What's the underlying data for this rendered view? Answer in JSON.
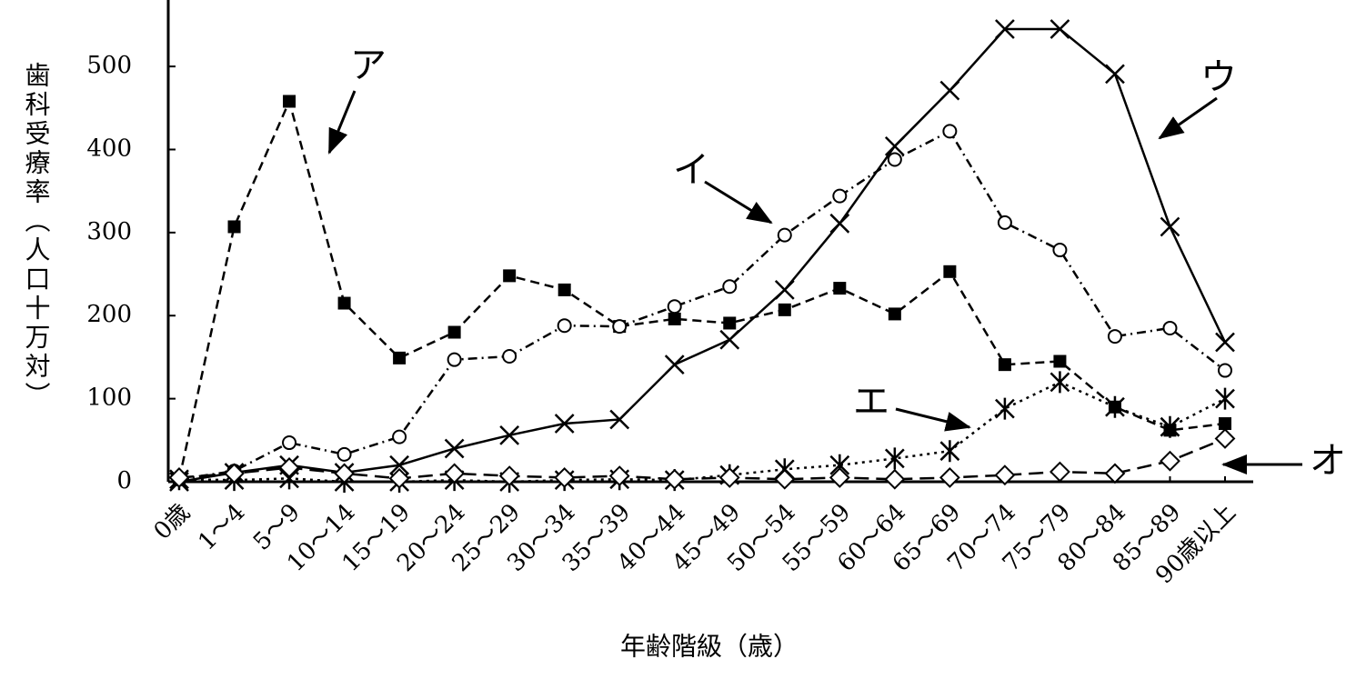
{
  "chart_data": {
    "type": "line",
    "y_label": "歯科受療率（人口十万対）",
    "x_label": "年齢階級（歳）",
    "categories": [
      "0歳",
      "1～4",
      "5～9",
      "10～14",
      "15～19",
      "20～24",
      "25～29",
      "30～34",
      "35～39",
      "40～44",
      "45～49",
      "50～54",
      "55～59",
      "60～64",
      "65～69",
      "70～74",
      "75～79",
      "80～84",
      "85～89",
      "90歳以上"
    ],
    "ylim": [
      0,
      580
    ],
    "yticks": [
      0,
      100,
      200,
      300,
      400,
      500
    ],
    "series": [
      {
        "name": "ア",
        "color": "#000000",
        "marker": "square",
        "dash": "dashed",
        "values": [
          3,
          307,
          458,
          215,
          149,
          180,
          248,
          231,
          187,
          196,
          191,
          207,
          233,
          202,
          253,
          141,
          145,
          90,
          62,
          70
        ]
      },
      {
        "name": "イ",
        "color": "#000000",
        "marker": "circle",
        "dash": "dashdot",
        "values": [
          3,
          13,
          47,
          33,
          54,
          147,
          151,
          188,
          187,
          211,
          235,
          297,
          344,
          388,
          422,
          312,
          279,
          175,
          185,
          134
        ]
      },
      {
        "name": "ウ",
        "color": "#000000",
        "marker": "cross",
        "dash": "solid",
        "values": [
          0,
          11,
          20,
          11,
          20,
          40,
          56,
          70,
          75,
          141,
          171,
          231,
          311,
          404,
          471,
          545,
          545,
          491,
          307,
          168
        ]
      },
      {
        "name": "エ",
        "color": "#000000",
        "marker": "asterisk",
        "dash": "dotted",
        "values": [
          3,
          2,
          4,
          0,
          0,
          2,
          0,
          2,
          3,
          2,
          8,
          15,
          20,
          28,
          37,
          88,
          120,
          90,
          66,
          100
        ]
      },
      {
        "name": "オ",
        "color": "#000000",
        "marker": "diamond",
        "dash": "longdash",
        "values": [
          5,
          10,
          17,
          10,
          4,
          10,
          7,
          5,
          7,
          3,
          5,
          3,
          5,
          3,
          5,
          8,
          12,
          10,
          25,
          52
        ]
      }
    ]
  }
}
